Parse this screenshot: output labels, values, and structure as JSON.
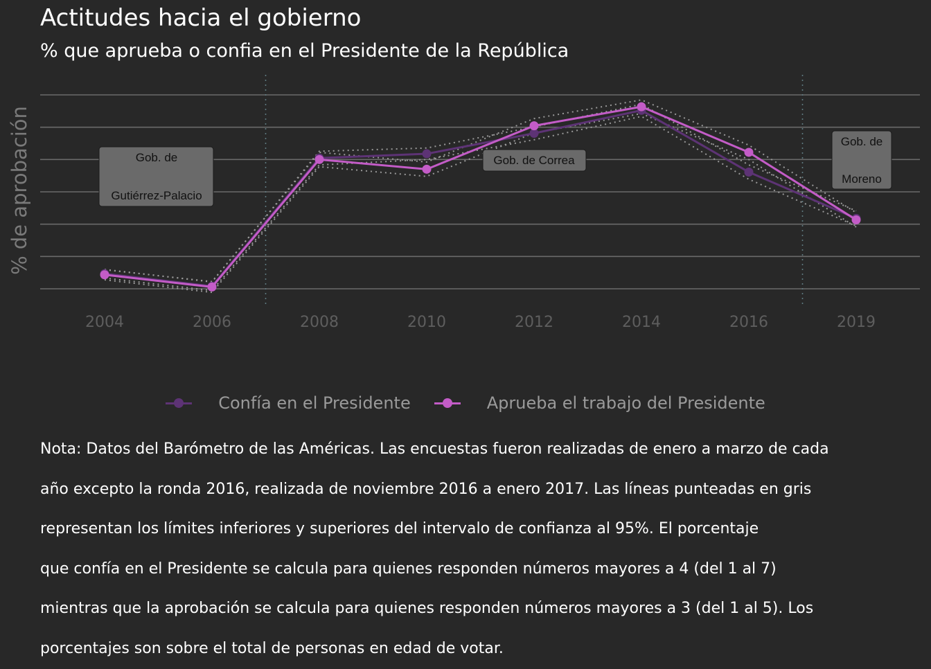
{
  "title": "Actitudes hacia el gobierno",
  "subtitle": "% que aprueba o confia en el Presidente de la República",
  "chart_data": {
    "type": "line",
    "categories": [
      "2004",
      "2006",
      "2008",
      "2010",
      "2012",
      "2014",
      "2016",
      "2019"
    ],
    "ylabel": "% de aprobación",
    "ylim": [
      36,
      90
    ],
    "grid": true,
    "legend_position": "bottom",
    "series": [
      {
        "name": "Confía en el Presidente",
        "color": "#5d3375",
        "values": [
          40.2,
          36.7,
          72.4,
          73.6,
          79.3,
          85.7,
          68.5,
          55.6
        ],
        "lower": [
          39.0,
          35.5,
          70.5,
          72.0,
          77.5,
          84.0,
          66.5,
          53.5
        ],
        "upper": [
          41.4,
          37.9,
          74.3,
          75.2,
          81.1,
          87.4,
          70.5,
          57.7
        ]
      },
      {
        "name": "Aprueba el trabajo del Presidente",
        "color": "#c35cc7",
        "values": [
          39.9,
          36.5,
          72.0,
          69.3,
          81.4,
          86.7,
          74.0,
          55.2
        ],
        "lower": [
          38.5,
          35.0,
          70.0,
          67.3,
          79.4,
          84.8,
          72.0,
          53.2
        ],
        "upper": [
          41.3,
          38.0,
          74.0,
          71.3,
          83.4,
          88.6,
          76.0,
          57.2
        ]
      }
    ],
    "government_breaks": [
      "2006-2008",
      "2016-2019"
    ],
    "annotations": [
      {
        "lines": [
          "Gob. de",
          "Gutiérrez-Palacio"
        ]
      },
      {
        "lines": [
          "Gob. de Correa"
        ]
      },
      {
        "lines": [
          "Gob. de",
          "Moreno"
        ]
      }
    ]
  },
  "note": [
    "Nota: Datos del Barómetro de las Américas. Las encuestas fueron realizadas de enero a marzo de cada",
    "año excepto la ronda 2016, realizada de noviembre 2016 a enero 2017. Las líneas punteadas en gris",
    "representan los límites inferiores y superiores del intervalo de confianza al 95%. El porcentaje",
    "que confía en el Presidente se calcula para quienes responden números mayores a 4 (del 1 al 7)",
    "mientras que la aprobación se calcula para quienes responden números mayores a 3 (del 1 al 5). Los",
    "porcentajes son sobre el total de personas en edad de votar."
  ]
}
